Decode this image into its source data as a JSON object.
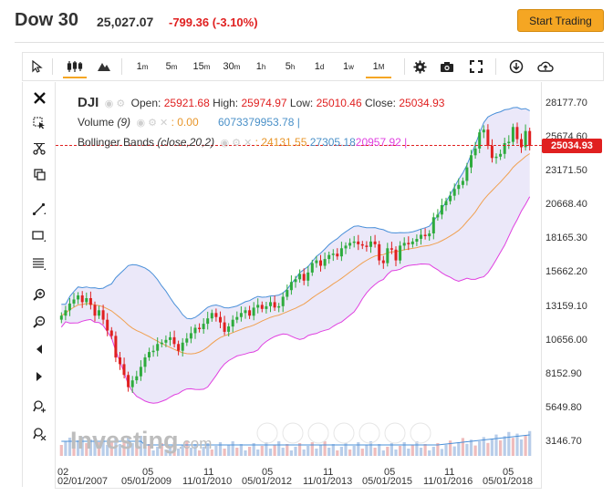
{
  "header": {
    "symbol": "Dow 30",
    "price": "25,027.07",
    "change": "-799.36 (-3.10%)",
    "cta_label": "Start Trading"
  },
  "toolbar": {
    "intervals": [
      "1m",
      "5m",
      "15m",
      "30m",
      "1h",
      "5h",
      "1d",
      "1w",
      "1M"
    ],
    "active_interval": "1M"
  },
  "legend": {
    "symbol": "DJI",
    "open_label": "Open:",
    "open": "25921.68",
    "high_label": "High:",
    "high": "25974.97",
    "low_label": "Low:",
    "low": "25010.46",
    "close_label": "Close:",
    "close": "25034.93",
    "volume_label": "Volume",
    "volume_period": "(9)",
    "volume_value": ": 0.00",
    "volume_total": "6073379953.78 |",
    "bb_label": "Bollinger Bands",
    "bb_params": "(close,20,2)",
    "bb_mid": ": 24131.55",
    "bb_upper": "27305.18",
    "bb_lower": "20957.92 |"
  },
  "price_axis": [
    "28177.70",
    "25674.60",
    "23171.50",
    "20668.40",
    "18165.30",
    "15662.20",
    "13159.10",
    "10656.00",
    "8152.90",
    "5649.80",
    "3146.70"
  ],
  "last_price_tag": "25034.93",
  "time_axis": {
    "years": [
      "02",
      "05",
      "11",
      "05",
      "11",
      "05",
      "11",
      "05"
    ],
    "dates": [
      "02/01/2007",
      "05/01/2009",
      "11/01/2010",
      "05/01/2012",
      "11/01/2013",
      "05/01/2015",
      "11/01/2016",
      "05/01/2018"
    ]
  },
  "watermark": {
    "brand": "Investing",
    "suffix": ".com"
  },
  "colors": {
    "up": "#2eab3d",
    "down": "#e02020",
    "bb_upper": "#4a90d9",
    "bb_mid": "#f0a050",
    "bb_lower": "#e040e0",
    "bb_fill": "#e8e4f8",
    "accent": "#f5a623"
  },
  "chart_data": {
    "type": "candlestick",
    "y_range": [
      3146.7,
      28177.7
    ],
    "closes": [
      12400,
      12800,
      13300,
      13600,
      13900,
      13400,
      13700,
      13200,
      12400,
      12800,
      12100,
      11300,
      10900,
      9300,
      8800,
      8000,
      7100,
      7600,
      7900,
      8600,
      9300,
      9700,
      9800,
      10300,
      10400,
      10600,
      10800,
      10300,
      9800,
      10400,
      10700,
      11100,
      11500,
      11400,
      11800,
      12200,
      12600,
      12300,
      11900,
      11200,
      11600,
      12100,
      12300,
      12600,
      12800,
      12400,
      13000,
      13200,
      12900,
      13100,
      13400,
      13000,
      13100,
      13800,
      14300,
      14900,
      15100,
      15500,
      15000,
      15600,
      16300,
      16500,
      16100,
      16600,
      16900,
      17000,
      16800,
      17400,
      17600,
      17800,
      17900,
      17700,
      17600,
      17500,
      17900,
      17700,
      16500,
      16300,
      17400,
      17300,
      16500,
      17600,
      17800,
      17700,
      17900,
      18100,
      18400,
      18300,
      18500,
      19700,
      19900,
      20600,
      20900,
      21300,
      21800,
      22100,
      22400,
      23400,
      24300,
      24800,
      26000,
      26200,
      25000,
      24100,
      24200,
      24400,
      25200,
      25300,
      26400,
      25500,
      24900,
      26100,
      25000
    ]
  }
}
